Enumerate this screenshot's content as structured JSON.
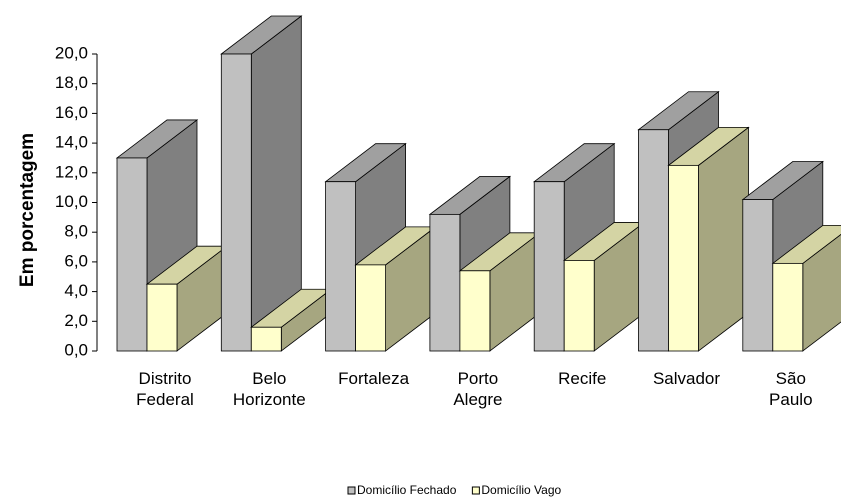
{
  "chart_data": {
    "type": "bar3d",
    "y_axis_label": "Em porcentagem",
    "categories": [
      "Distrito Federal",
      "Belo Horizonte",
      "Fortaleza",
      "Porto Alegre",
      "Recife",
      "Salvador",
      "São Paulo"
    ],
    "series": [
      {
        "name": "Domicílio Fechado",
        "color": "#c0c0c0",
        "values": [
          13.0,
          20.0,
          11.4,
          9.2,
          11.4,
          14.9,
          10.2
        ]
      },
      {
        "name": "Domicílio Vago",
        "color": "#ffffcc",
        "values": [
          4.5,
          1.6,
          5.8,
          5.4,
          6.1,
          12.5,
          5.9
        ]
      }
    ],
    "ylim": [
      0,
      20
    ],
    "yticks": [
      {
        "value": 0,
        "label": "0,0"
      },
      {
        "value": 2,
        "label": "2,0"
      },
      {
        "value": 4,
        "label": "4,0"
      },
      {
        "value": 6,
        "label": "6,0"
      },
      {
        "value": 8,
        "label": "8,0"
      },
      {
        "value": 10,
        "label": "10,0"
      },
      {
        "value": 12,
        "label": "12,0"
      },
      {
        "value": 14,
        "label": "14,0"
      },
      {
        "value": 16,
        "label": "16,0"
      },
      {
        "value": 18,
        "label": "18,0"
      },
      {
        "value": 20,
        "label": "20,0"
      }
    ],
    "legend": "bottom"
  }
}
